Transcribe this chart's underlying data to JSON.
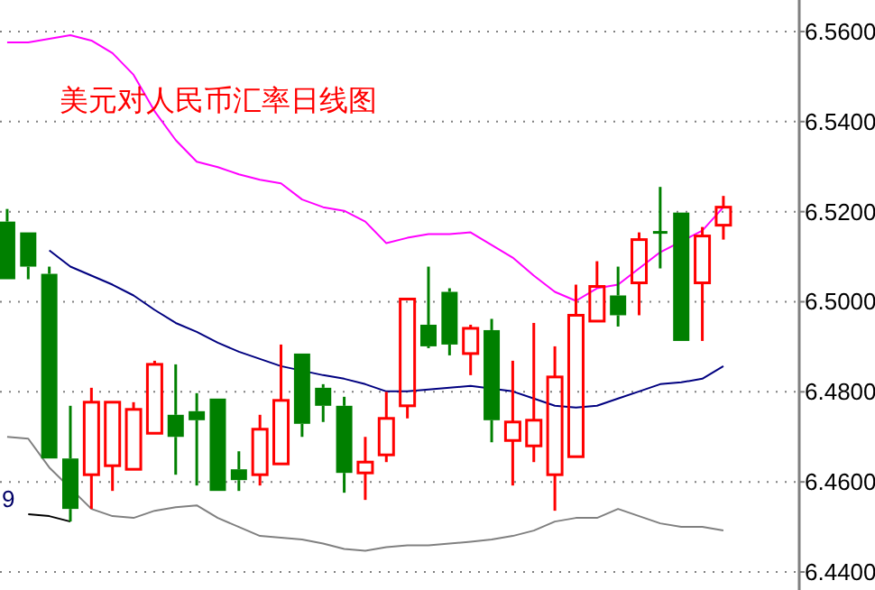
{
  "chart_data": {
    "type": "candlestick",
    "title": "美元对人民币汇率日线图",
    "categories": [
      null,
      null,
      null,
      null,
      null,
      null,
      null,
      null,
      null,
      null,
      null,
      null,
      null,
      null,
      null,
      null,
      null,
      null,
      null,
      null,
      null,
      null,
      null,
      null,
      null,
      null,
      null,
      null,
      null,
      null,
      null,
      null,
      null,
      null,
      null
    ],
    "ohlc": [
      [
        6.5178,
        6.5206,
        6.505,
        6.505
      ],
      [
        6.5154,
        6.5154,
        6.505,
        6.5078
      ],
      [
        6.5062,
        6.5078,
        6.4652,
        6.4652
      ],
      [
        6.4652,
        6.4769,
        6.4512,
        6.454
      ],
      [
        6.4616,
        6.4809,
        6.454,
        6.4777
      ],
      [
        6.4636,
        6.4777,
        6.458,
        6.4777
      ],
      [
        6.4628,
        6.4777,
        6.4628,
        6.4761
      ],
      [
        6.4708,
        6.4869,
        6.4708,
        6.4861
      ],
      [
        6.4749,
        6.4861,
        6.4616,
        6.47
      ],
      [
        6.4757,
        6.4797,
        6.4592,
        6.4737
      ],
      [
        6.4785,
        6.4785,
        6.458,
        6.458
      ],
      [
        6.4628,
        6.4668,
        6.458,
        6.4604
      ],
      [
        6.4616,
        6.4749,
        6.4592,
        6.4717
      ],
      [
        6.464,
        6.4905,
        6.464,
        6.4781
      ],
      [
        6.4885,
        6.4885,
        6.47,
        6.4729
      ],
      [
        6.4809,
        6.4817,
        6.4733,
        6.4769
      ],
      [
        6.4769,
        6.4789,
        6.4576,
        6.462
      ],
      [
        6.462,
        6.47,
        6.456,
        6.4644
      ],
      [
        6.466,
        6.48,
        6.4644,
        6.4741
      ],
      [
        6.4769,
        6.5006,
        6.4741,
        6.5006
      ],
      [
        6.4949,
        6.5078,
        6.4897,
        6.4901
      ],
      [
        6.5022,
        6.503,
        6.4881,
        6.4905
      ],
      [
        6.4885,
        6.4949,
        6.4837,
        6.4941
      ],
      [
        6.4937,
        6.4962,
        6.4688,
        6.4737
      ],
      [
        6.4692,
        6.4869,
        6.4592,
        6.4733
      ],
      [
        6.468,
        6.4953,
        6.4644,
        6.4737
      ],
      [
        6.4616,
        6.4901,
        6.4536,
        6.4833
      ],
      [
        6.4656,
        6.5038,
        6.4656,
        6.497
      ],
      [
        6.4957,
        6.509,
        6.4957,
        6.5034
      ],
      [
        6.5014,
        6.5078,
        6.4945,
        6.497
      ],
      [
        6.5042,
        6.5154,
        6.497,
        6.5138
      ],
      [
        6.5154,
        6.5255,
        6.5074,
        6.5154
      ],
      [
        6.5198,
        6.5198,
        6.4913,
        6.4913
      ],
      [
        6.5042,
        6.5166,
        6.4913,
        6.5146
      ],
      [
        6.517,
        6.5235,
        6.5138,
        6.521
      ]
    ],
    "colors": [
      "#008000",
      "#008000",
      "#008000",
      "#008000",
      "#ff0000",
      "#ff0000",
      "#ff0000",
      "#ff0000",
      "#008000",
      "#008000",
      "#008000",
      "#008000",
      "#ff0000",
      "#ff0000",
      "#008000",
      "#008000",
      "#008000",
      "#ff0000",
      "#ff0000",
      "#ff0000",
      "#008000",
      "#008000",
      "#ff0000",
      "#008000",
      "#ff0000",
      "#ff0000",
      "#ff0000",
      "#ff0000",
      "#ff0000",
      "#008000",
      "#ff0000",
      "#008000",
      "#008000",
      "#ff0000",
      "#ff0000"
    ],
    "series": [
      {
        "type": "line",
        "color": "#ff00ff",
        "values": [
          6.5576,
          6.5576,
          6.5584,
          6.5592,
          6.558,
          6.5552,
          6.5504,
          6.5423,
          6.5359,
          6.5311,
          6.5299,
          6.5283,
          6.5271,
          6.5263,
          6.5227,
          6.521,
          6.5202,
          6.5178,
          6.513,
          6.5142,
          6.515,
          6.515,
          6.5154,
          6.5126,
          6.5098,
          6.5058,
          6.5022,
          6.5002,
          6.503,
          6.5038,
          6.5074,
          6.511,
          null,
          6.5158,
          6.521
        ]
      },
      {
        "type": "line",
        "color": "#000080",
        "values": [
          null,
          null,
          6.5114,
          6.5078,
          6.5058,
          6.5038,
          6.5014,
          6.4982,
          6.4953,
          6.4933,
          6.4909,
          6.4889,
          6.4873,
          6.4857,
          null,
          6.4837,
          6.4829,
          6.4817,
          6.4801,
          6.4801,
          6.4805,
          6.4809,
          6.4813,
          null,
          6.4801,
          6.4785,
          6.4769,
          6.4765,
          6.4769,
          6.4785,
          6.4801,
          6.4817,
          6.4821,
          6.4829,
          6.4857
        ]
      },
      {
        "type": "line",
        "color": "#808080",
        "values": [
          6.47,
          6.4696,
          6.4632,
          null,
          6.454,
          6.4524,
          6.452,
          6.4536,
          6.4544,
          6.4548,
          6.452,
          6.45,
          6.448,
          6.4476,
          6.4472,
          6.4463,
          6.4451,
          6.4447,
          6.4455,
          6.4459,
          6.4459,
          6.4463,
          6.4467,
          6.4472,
          6.448,
          6.4492,
          6.4512,
          6.452,
          6.452,
          6.454,
          6.4524,
          6.4508,
          6.45,
          6.45,
          6.4492
        ]
      },
      {
        "type": "line",
        "color": "#000000",
        "values": [
          null,
          6.4528,
          6.4524,
          6.4512,
          null,
          null,
          null,
          null,
          null,
          null,
          null,
          null,
          null,
          null,
          null,
          null,
          null,
          null,
          null,
          null,
          null,
          null,
          null,
          null,
          null,
          null,
          null,
          null,
          null,
          null,
          null,
          null,
          null,
          null,
          null
        ]
      }
    ],
    "annotations": [
      "9"
    ],
    "ylim": [
      6.436,
      6.567
    ],
    "yticks": [
      {
        "value": 6.44,
        "label": "6.4400"
      },
      {
        "value": 6.46,
        "label": "6.4600"
      },
      {
        "value": 6.48,
        "label": "6.4800"
      },
      {
        "value": 6.5,
        "label": "6.5000"
      },
      {
        "value": 6.52,
        "label": "6.5200"
      },
      {
        "value": 6.54,
        "label": "6.5400"
      },
      {
        "value": 6.56,
        "label": "6.5600"
      }
    ],
    "grid": "y"
  }
}
